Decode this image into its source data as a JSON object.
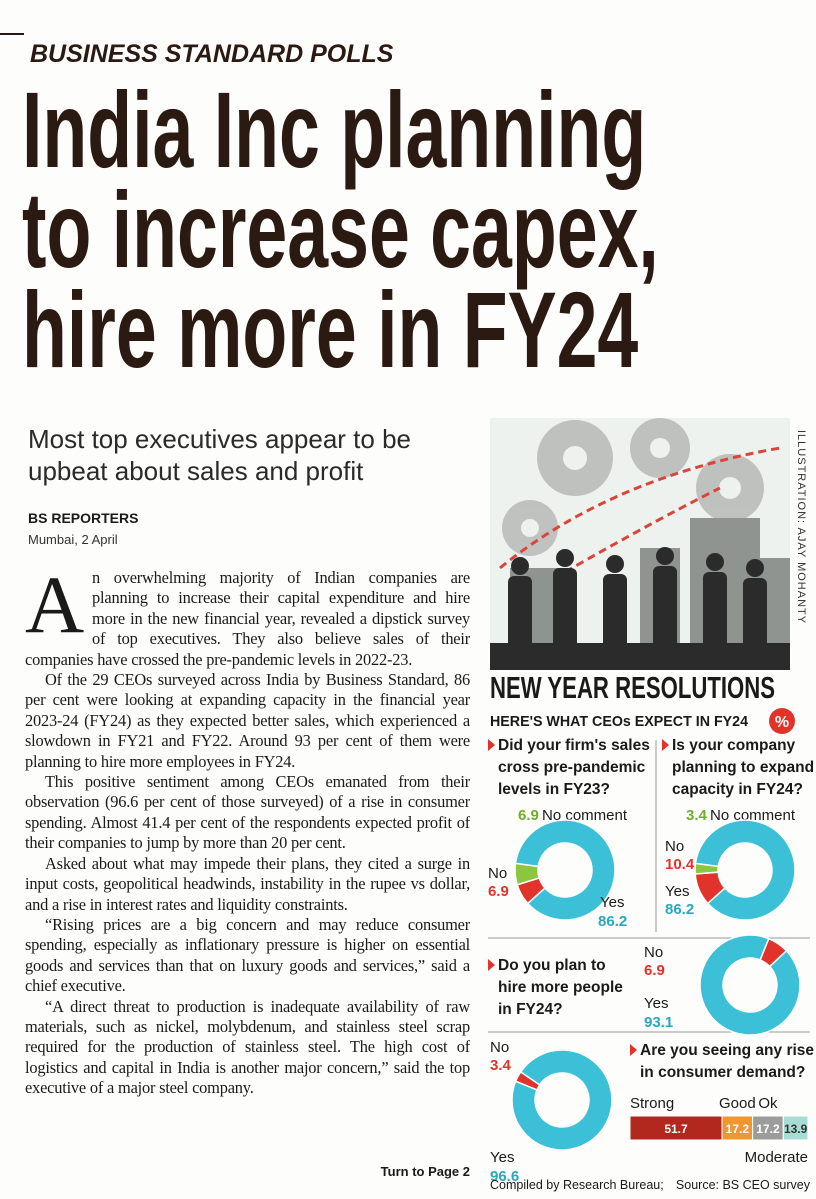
{
  "header": {
    "kicker": "BUSINESS STANDARD POLLS",
    "headline_lines": [
      "India Inc planning",
      "to increase capex,",
      "hire more in FY24"
    ],
    "subhead_lines": [
      "Most top executives appear to be",
      "upbeat about sales and profit"
    ]
  },
  "article": {
    "byline": "BS REPORTERS",
    "dateline": "Mumbai, 2 April",
    "drop_cap": "A",
    "paragraphs": [
      "n overwhelming majority of Indian companies are planning to increase their capital expenditure and hire more in the new financial year, revealed a dipstick survey of top executives. They also believe sales of their companies have crossed the pre-pandemic levels in 2022-23.",
      "Of the 29 CEOs surveyed across India by Business Standard, 86 per cent were looking at expanding capacity in the financial year 2023-24 (FY24) as they expected better sales, which experienced a slowdown in FY21 and FY22. Around 93 per cent of them were planning to hire more employees in FY24.",
      "This positive sentiment among CEOs emanated from their observation (96.6 per cent of those surveyed) of a rise in consumer spending. Almost 41.4 per cent of the respondents expected profit of their companies to jump by more than 20 per cent.",
      "Asked about what may impede their plans, they cited a surge in input costs, geopolitical headwinds, instability in the rupee vs dollar, and a rise in interest rates and liquidity constraints.",
      "“Rising prices are a big concern and may reduce consumer spending, especially as inflationary pressure is higher on essential goods and services than that on luxury goods and services,” said a chief executive.",
      "“A direct threat to production is inadequate availability of raw materials, such as nickel, molybdenum, and stainless steel scrap required for the production of stainless steel. The high cost of logistics and capital in India is another major concern,” said the top executive of a major steel company."
    ],
    "continuation": "Turn to Page 2"
  },
  "illustration_credit": "ILLUSTRATION: AJAY MOHANTY",
  "infographic": {
    "title": "NEW YEAR RESOLUTIONS",
    "subtitle": "HERE'S WHAT CEOs EXPECT IN FY24",
    "badge": "%",
    "donuts": [
      {
        "question_lines": [
          "Did your firm's sales",
          "cross pre-pandemic",
          "levels in FY23?"
        ],
        "segments": [
          {
            "name": "No",
            "value": 6.9,
            "color": "#e2332a"
          },
          {
            "name": "No comment",
            "value": 6.9,
            "color": "#8cc63f"
          },
          {
            "name": "Yes",
            "value": 86.2,
            "color": "#3cc0d8"
          }
        ]
      },
      {
        "question_lines": [
          "Is your company",
          "planning to expand",
          "capacity in FY24?"
        ],
        "segments": [
          {
            "name": "No",
            "value": 10.4,
            "color": "#e2332a"
          },
          {
            "name": "No comment",
            "value": 3.4,
            "color": "#8cc63f"
          },
          {
            "name": "Yes",
            "value": 86.2,
            "color": "#3cc0d8"
          }
        ]
      },
      {
        "question_lines": [
          "Do you plan to",
          "hire more people",
          "in FY24?"
        ],
        "segments": [
          {
            "name": "No",
            "value": 6.9,
            "color": "#e2332a"
          },
          {
            "name": "Yes",
            "value": 93.1,
            "color": "#3cc0d8"
          }
        ]
      },
      {
        "question_lines": [],
        "segments": [
          {
            "name": "No",
            "value": 3.4,
            "color": "#e2332a"
          },
          {
            "name": "Yes",
            "value": 96.6,
            "color": "#3cc0d8"
          }
        ]
      }
    ],
    "bar": {
      "question_lines": [
        "Are you seeing any rise",
        "in consumer demand?"
      ],
      "segments": [
        {
          "name": "Strong",
          "value": 51.7,
          "color": "#b2281e"
        },
        {
          "name": "Good",
          "value": 17.2,
          "color": "#ef962e"
        },
        {
          "name": "Ok",
          "value": 17.2,
          "color": "#9c9c9c"
        },
        {
          "name": "Moderate",
          "value": 13.9,
          "color": "#a8ddd6"
        }
      ]
    },
    "compiled_by": "Compiled by Research Bureau;",
    "source": "Source: BS CEO survey"
  }
}
